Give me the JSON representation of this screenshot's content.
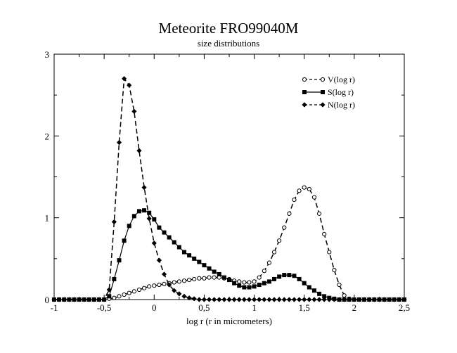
{
  "chart_data": {
    "type": "line",
    "title": "Meteorite FRO99040M",
    "subtitle": "size distributions",
    "xlabel": "log r (r in micrometers)",
    "ylabel": "",
    "xlim": [
      -1,
      2.5
    ],
    "ylim": [
      0,
      3
    ],
    "xticks": [
      -1,
      -0.5,
      0,
      0.5,
      1,
      1.5,
      2,
      2.5
    ],
    "xtick_labels": [
      "-1",
      "-0,5",
      "0",
      "0,5",
      "1",
      "1,5",
      "2",
      "2,5"
    ],
    "yticks": [
      0,
      1,
      2,
      3
    ],
    "ytick_labels": [
      "0",
      "1",
      "2",
      "3"
    ],
    "legend_position": "top-right",
    "series": [
      {
        "name": "V(log r)",
        "line_style": "dashed",
        "marker": "open-circle",
        "x": [
          -1.0,
          -0.95,
          -0.9,
          -0.85,
          -0.8,
          -0.75,
          -0.7,
          -0.65,
          -0.6,
          -0.55,
          -0.5,
          -0.45,
          -0.4,
          -0.35,
          -0.3,
          -0.25,
          -0.2,
          -0.15,
          -0.1,
          -0.05,
          0.0,
          0.05,
          0.1,
          0.15,
          0.2,
          0.25,
          0.3,
          0.35,
          0.4,
          0.45,
          0.5,
          0.55,
          0.6,
          0.65,
          0.7,
          0.75,
          0.8,
          0.85,
          0.9,
          0.95,
          1.0,
          1.05,
          1.1,
          1.15,
          1.2,
          1.25,
          1.3,
          1.35,
          1.4,
          1.45,
          1.5,
          1.55,
          1.6,
          1.65,
          1.7,
          1.75,
          1.8,
          1.85,
          1.9,
          1.95,
          2.0,
          2.05,
          2.1,
          2.15,
          2.2,
          2.25,
          2.3,
          2.35,
          2.4,
          2.45,
          2.5
        ],
        "y": [
          0,
          0,
          0,
          0,
          0,
          0,
          0,
          0,
          0,
          0,
          0,
          0.01,
          0.02,
          0.04,
          0.06,
          0.08,
          0.1,
          0.12,
          0.14,
          0.16,
          0.17,
          0.18,
          0.19,
          0.2,
          0.21,
          0.22,
          0.23,
          0.24,
          0.25,
          0.26,
          0.26,
          0.27,
          0.27,
          0.27,
          0.26,
          0.25,
          0.23,
          0.22,
          0.21,
          0.21,
          0.22,
          0.27,
          0.35,
          0.45,
          0.58,
          0.72,
          0.88,
          1.05,
          1.22,
          1.33,
          1.37,
          1.35,
          1.25,
          1.05,
          0.8,
          0.58,
          0.36,
          0.18,
          0.05,
          0.01,
          0,
          0,
          0,
          0,
          0,
          0,
          0,
          0,
          0,
          0,
          0
        ]
      },
      {
        "name": "S(log r)",
        "line_style": "solid",
        "marker": "filled-square",
        "x": [
          -1.0,
          -0.95,
          -0.9,
          -0.85,
          -0.8,
          -0.75,
          -0.7,
          -0.65,
          -0.6,
          -0.55,
          -0.5,
          -0.45,
          -0.4,
          -0.35,
          -0.3,
          -0.25,
          -0.2,
          -0.15,
          -0.1,
          -0.05,
          0.0,
          0.05,
          0.1,
          0.15,
          0.2,
          0.25,
          0.3,
          0.35,
          0.4,
          0.45,
          0.5,
          0.55,
          0.6,
          0.65,
          0.7,
          0.75,
          0.8,
          0.85,
          0.9,
          0.95,
          1.0,
          1.05,
          1.1,
          1.15,
          1.2,
          1.25,
          1.3,
          1.35,
          1.4,
          1.45,
          1.5,
          1.55,
          1.6,
          1.65,
          1.7,
          1.75,
          1.8,
          1.85,
          1.9,
          1.95,
          2.0,
          2.05,
          2.1,
          2.15,
          2.2,
          2.25,
          2.3,
          2.35,
          2.4,
          2.45,
          2.5
        ],
        "y": [
          0,
          0,
          0,
          0,
          0,
          0,
          0,
          0,
          0,
          0,
          0,
          0.04,
          0.25,
          0.48,
          0.72,
          0.9,
          1.02,
          1.08,
          1.09,
          1.06,
          0.98,
          0.88,
          0.82,
          0.76,
          0.7,
          0.64,
          0.58,
          0.54,
          0.5,
          0.46,
          0.42,
          0.38,
          0.34,
          0.31,
          0.27,
          0.24,
          0.2,
          0.17,
          0.15,
          0.15,
          0.16,
          0.18,
          0.2,
          0.22,
          0.25,
          0.28,
          0.3,
          0.3,
          0.29,
          0.25,
          0.2,
          0.15,
          0.11,
          0.07,
          0.04,
          0.02,
          0.01,
          0,
          0,
          0,
          0,
          0,
          0,
          0,
          0,
          0,
          0,
          0,
          0,
          0,
          0
        ]
      },
      {
        "name": "N(log r)",
        "line_style": "dashed",
        "marker": "filled-diamond",
        "x": [
          -1.0,
          -0.95,
          -0.9,
          -0.85,
          -0.8,
          -0.75,
          -0.7,
          -0.65,
          -0.6,
          -0.55,
          -0.5,
          -0.45,
          -0.4,
          -0.35,
          -0.3,
          -0.25,
          -0.2,
          -0.15,
          -0.1,
          -0.05,
          0.0,
          0.05,
          0.1,
          0.15,
          0.2,
          0.25,
          0.3,
          0.35,
          0.4,
          0.45,
          0.5,
          0.55,
          0.6,
          0.65,
          0.7,
          0.75,
          0.8,
          0.85,
          0.9,
          0.95,
          1.0,
          1.05,
          1.1,
          1.15,
          1.2,
          1.25,
          1.3,
          1.35,
          1.4,
          1.45,
          1.5,
          1.55,
          1.6,
          1.65,
          1.7,
          1.75,
          1.8,
          1.85,
          1.9,
          1.95,
          2.0,
          2.05,
          2.1,
          2.15,
          2.2,
          2.25,
          2.3,
          2.35,
          2.4,
          2.45,
          2.5
        ],
        "y": [
          0,
          0,
          0,
          0,
          0,
          0,
          0,
          0,
          0,
          0,
          0,
          0.12,
          0.95,
          1.92,
          2.7,
          2.62,
          2.3,
          1.82,
          1.37,
          0.99,
          0.69,
          0.48,
          0.31,
          0.18,
          0.11,
          0.07,
          0.04,
          0.02,
          0.01,
          0,
          0,
          0,
          0,
          0,
          0,
          0,
          0,
          0,
          0,
          0,
          0,
          0,
          0,
          0,
          0,
          0,
          0,
          0,
          0,
          0,
          0,
          0,
          0,
          0,
          0,
          0,
          0,
          0,
          0,
          0,
          0,
          0,
          0,
          0,
          0,
          0,
          0,
          0,
          0,
          0,
          0
        ]
      }
    ]
  }
}
